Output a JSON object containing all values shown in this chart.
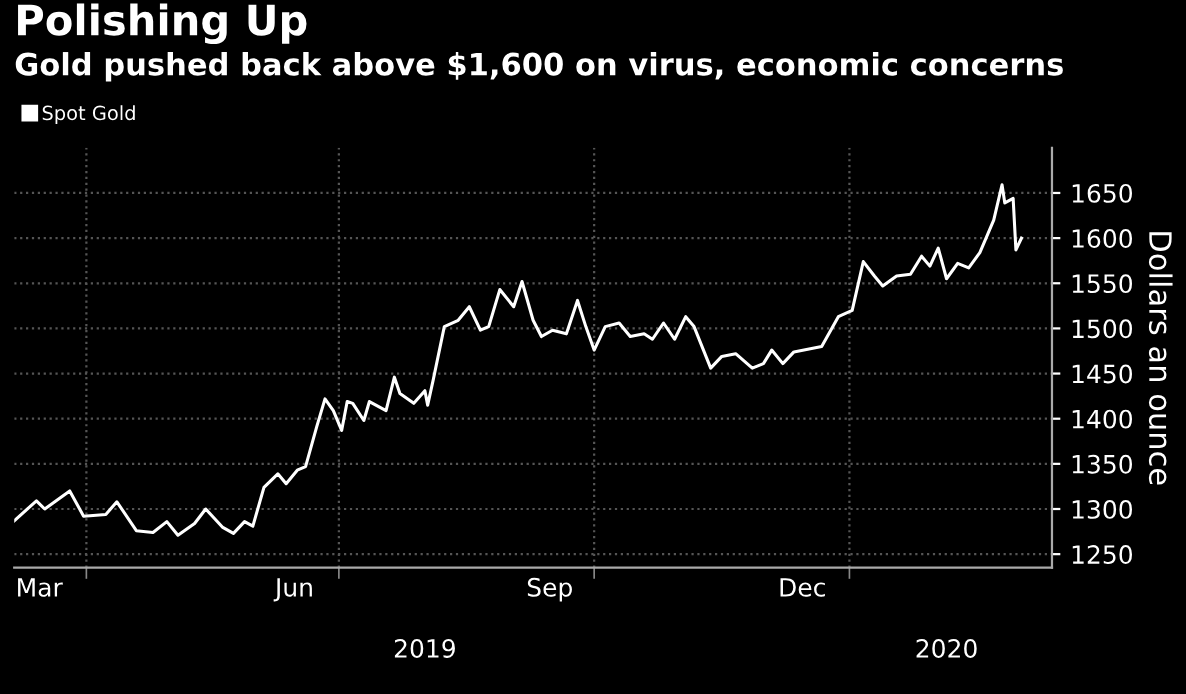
{
  "chart_data": {
    "type": "line",
    "title": "Polishing Up",
    "subtitle": "Gold pushed back above $1,600 on virus, economic concerns",
    "ylabel": "Dollars an ounce",
    "x": [
      "2019-03-06",
      "2019-03-14",
      "2019-03-17",
      "2019-03-26",
      "2019-03-31",
      "2019-04-08",
      "2019-04-12",
      "2019-04-19",
      "2019-04-25",
      "2019-04-30",
      "2019-05-04",
      "2019-05-10",
      "2019-05-14",
      "2019-05-20",
      "2019-05-24",
      "2019-05-28",
      "2019-05-31",
      "2019-06-04",
      "2019-06-09",
      "2019-06-12",
      "2019-06-16",
      "2019-06-19",
      "2019-06-23",
      "2019-06-26",
      "2019-06-29",
      "2019-07-02",
      "2019-07-04",
      "2019-07-06",
      "2019-07-10",
      "2019-07-12",
      "2019-07-18",
      "2019-07-21",
      "2019-07-23",
      "2019-07-28",
      "2019-08-01",
      "2019-08-02",
      "2019-08-04",
      "2019-08-08",
      "2019-08-13",
      "2019-08-17",
      "2019-08-21",
      "2019-08-24",
      "2019-08-28",
      "2019-09-02",
      "2019-09-05",
      "2019-09-09",
      "2019-09-12",
      "2019-09-16",
      "2019-09-21",
      "2019-09-25",
      "2019-09-28",
      "2019-10-01",
      "2019-10-05",
      "2019-10-10",
      "2019-10-14",
      "2019-10-19",
      "2019-10-22",
      "2019-10-26",
      "2019-10-30",
      "2019-11-03",
      "2019-11-06",
      "2019-11-12",
      "2019-11-16",
      "2019-11-21",
      "2019-11-27",
      "2019-12-01",
      "2019-12-04",
      "2019-12-08",
      "2019-12-12",
      "2019-12-22",
      "2019-12-28",
      "2020-01-02",
      "2020-01-06",
      "2020-01-10",
      "2020-01-13",
      "2020-01-18",
      "2020-01-23",
      "2020-01-27",
      "2020-01-30",
      "2020-02-02",
      "2020-02-05",
      "2020-02-09",
      "2020-02-13",
      "2020-02-17",
      "2020-02-22",
      "2020-02-25",
      "2020-02-26",
      "2020-02-29",
      "2020-03-01",
      "2020-03-03"
    ],
    "series": [
      {
        "name": "Spot Gold",
        "color": "#ffffff",
        "values": [
          1287,
          1309,
          1300,
          1320,
          1292,
          1294,
          1308,
          1276,
          1274,
          1286,
          1271,
          1284,
          1300,
          1280,
          1273,
          1286,
          1281,
          1324,
          1339,
          1328,
          1343,
          1347,
          1391,
          1422,
          1409,
          1387,
          1419,
          1417,
          1398,
          1419,
          1409,
          1446,
          1428,
          1417,
          1431,
          1415,
          1443,
          1502,
          1509,
          1524,
          1498,
          1502,
          1543,
          1524,
          1552,
          1509,
          1491,
          1498,
          1494,
          1531,
          1502,
          1476,
          1502,
          1506,
          1491,
          1494,
          1488,
          1506,
          1488,
          1513,
          1502,
          1456,
          1469,
          1472,
          1456,
          1461,
          1476,
          1461,
          1474,
          1480,
          1513,
          1520,
          1574,
          1558,
          1547,
          1558,
          1560,
          1580,
          1569,
          1589,
          1555,
          1572,
          1567,
          1584,
          1620,
          1659,
          1639,
          1644,
          1587,
          1600
        ]
      }
    ],
    "xlim": [
      "2019-03-06",
      "2020-03-14"
    ],
    "xticks": [
      {
        "value": "2019-03-15",
        "label": "Mar"
      },
      {
        "value": "2019-04-01",
        "label": null
      },
      {
        "value": "2019-06-15",
        "label": "Jun"
      },
      {
        "value": "2019-07-01",
        "label": null
      },
      {
        "value": "2019-09-15",
        "label": "Sep"
      },
      {
        "value": "2019-10-01",
        "label": null
      },
      {
        "value": "2019-12-15",
        "label": "Dec"
      },
      {
        "value": "2020-01-01",
        "label": null
      }
    ],
    "ylim": [
      1235,
      1700
    ],
    "yticks": [
      1250,
      1300,
      1350,
      1400,
      1450,
      1500,
      1550,
      1600,
      1650
    ],
    "grid": true,
    "legend": "top left",
    "line_style": "solid",
    "marker": "none",
    "x2lim": [
      "2019-03-06",
      "2020-03-14"
    ],
    "x2ticks": [
      {
        "value": "2019-08-01",
        "label": "2019"
      },
      {
        "value": "2020-02-05",
        "label": "2020"
      }
    ]
  }
}
